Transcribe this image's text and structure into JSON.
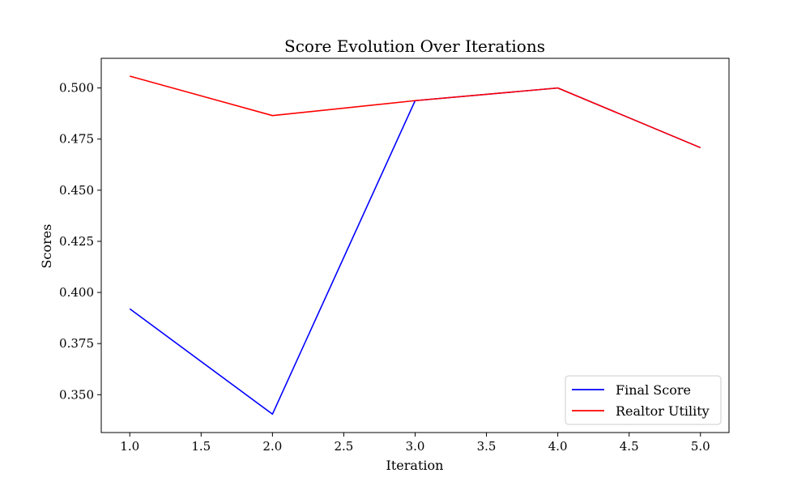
{
  "chart_data": {
    "type": "line",
    "title": "Score Evolution Over Iterations",
    "xlabel": "Iteration",
    "ylabel": "Scores",
    "x": [
      1,
      2,
      3,
      4,
      5
    ],
    "xlim": [
      0.8,
      5.2
    ],
    "ylim": [
      0.3315,
      0.5145
    ],
    "xticks": [
      1.0,
      1.5,
      2.0,
      2.5,
      3.0,
      3.5,
      4.0,
      4.5,
      5.0
    ],
    "xtick_labels": [
      "1.0",
      "1.5",
      "2.0",
      "2.5",
      "3.0",
      "3.5",
      "4.0",
      "4.5",
      "5.0"
    ],
    "yticks": [
      0.35,
      0.375,
      0.4,
      0.425,
      0.45,
      0.475,
      0.5
    ],
    "ytick_labels": [
      "0.350",
      "0.375",
      "0.400",
      "0.425",
      "0.450",
      "0.475",
      "0.500"
    ],
    "grid": false,
    "legend_position": "lower-right",
    "series": [
      {
        "name": "Final Score",
        "color": "#0000ff",
        "values": [
          0.392,
          0.3405,
          0.4938,
          0.5,
          0.4708
        ]
      },
      {
        "name": "Realtor Utility",
        "color": "#ff0000",
        "values": [
          0.5058,
          0.4865,
          0.4938,
          0.5,
          0.4708
        ]
      }
    ]
  }
}
